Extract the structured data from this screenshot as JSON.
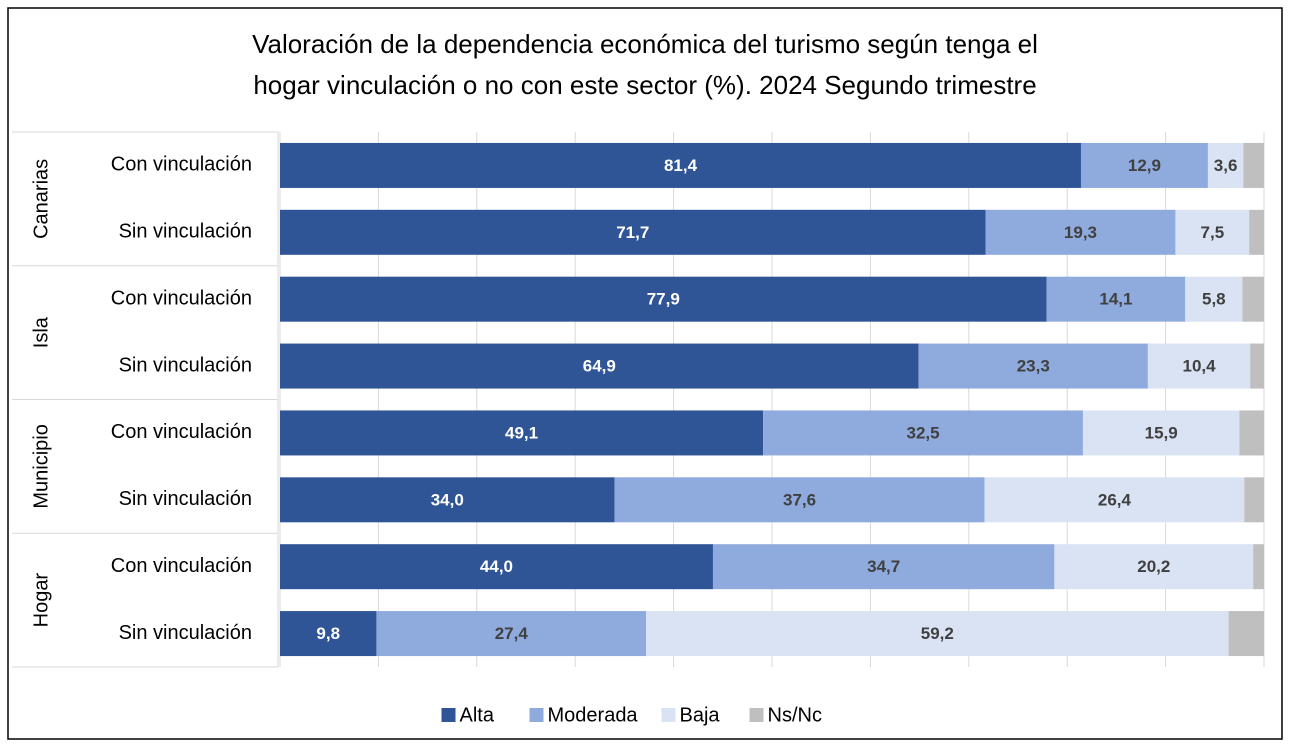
{
  "chart_data": {
    "type": "stacked_bar_horizontal",
    "title": [
      "Valoración de la dependencia económica del turismo según tenga el",
      "hogar vinculación o no con este sector (%). 2024 Segundo trimestre"
    ],
    "groups": [
      {
        "name": "Canarias",
        "categories": [
          "Con vinculación",
          "Sin vinculación"
        ]
      },
      {
        "name": "Isla",
        "categories": [
          "Con vinculación",
          "Sin vinculación"
        ]
      },
      {
        "name": "Municipio",
        "categories": [
          "Con vinculación",
          "Sin vinculación"
        ]
      },
      {
        "name": "Hogar",
        "categories": [
          "Con vinculación",
          "Sin vinculación"
        ]
      }
    ],
    "series": [
      {
        "name": "Alta",
        "color": "#2f5597",
        "label_color": "#ffffff",
        "values": [
          81.4,
          71.7,
          77.9,
          64.9,
          49.1,
          34.0,
          44.0,
          9.8
        ],
        "value_labels": [
          "81,4",
          "71,7",
          "77,9",
          "64,9",
          "49,1",
          "34,0",
          "44,0",
          "9,8"
        ]
      },
      {
        "name": "Moderada",
        "color": "#8faadc",
        "label_color": "#404040",
        "values": [
          12.9,
          19.3,
          14.1,
          23.3,
          32.5,
          37.6,
          34.7,
          27.4
        ],
        "value_labels": [
          "12,9",
          "19,3",
          "14,1",
          "23,3",
          "32,5",
          "37,6",
          "34,7",
          "27,4"
        ]
      },
      {
        "name": "Baja",
        "color": "#dae3f3",
        "label_color": "#404040",
        "values": [
          3.6,
          7.5,
          5.8,
          10.4,
          15.9,
          26.4,
          20.2,
          59.2
        ],
        "value_labels": [
          "3,6",
          "7,5",
          "5,8",
          "10,4",
          "15,9",
          "26,4",
          "20,2",
          "59,2"
        ]
      },
      {
        "name": "Ns/Nc",
        "color": "#bfbfbf",
        "values": [
          2.1,
          1.5,
          2.2,
          1.4,
          2.5,
          2.0,
          1.1,
          3.6
        ]
      }
    ],
    "xlim": [
      0,
      100
    ],
    "xticks": [
      0,
      10,
      20,
      30,
      40,
      50,
      60,
      70,
      80,
      90,
      100
    ],
    "grid": true,
    "legend": "bottom"
  }
}
